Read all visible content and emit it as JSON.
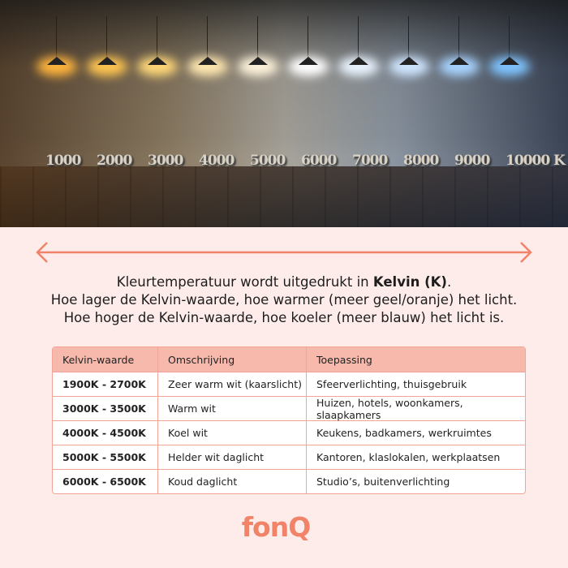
{
  "hero": {
    "lamp_colors": [
      "#ffb43c",
      "#ffc550",
      "#ffd878",
      "#ffe8b0",
      "#fff4dc",
      "#ffffff",
      "#eaf4ff",
      "#cfe6ff",
      "#a8d4ff",
      "#7fc4ff"
    ],
    "kelvin_labels": [
      "1000",
      "2000",
      "3000",
      "4000",
      "5000",
      "6000",
      "7000",
      "8000",
      "9000",
      "10000 K"
    ]
  },
  "intro": {
    "line1_prefix": "Kleurtemperatuur wordt uitgedrukt in ",
    "line1_bold": "Kelvin (K)",
    "line1_suffix": ".",
    "line2": "Hoe lager de Kelvin-waarde, hoe warmer (meer geel/oranje) het licht.",
    "line3": "Hoe hoger de Kelvin-waarde, hoe koeler (meer blauw) het licht is."
  },
  "table": {
    "headers": [
      "Kelvin-waarde",
      "Omschrijving",
      "Toepassing"
    ],
    "rows": [
      [
        "1900K - 2700K",
        "Zeer warm wit (kaarslicht)",
        "Sfeerverlichting, thuisgebruik"
      ],
      [
        "3000K - 3500K",
        "Warm wit",
        "Huizen, hotels, woonkamers, slaapkamers"
      ],
      [
        "4000K - 4500K",
        "Koel wit",
        "Keukens, badkamers, werkruimtes"
      ],
      [
        "5000K - 5500K",
        "Helder wit daglicht",
        "Kantoren, klaslokalen, werkplaatsen"
      ],
      [
        "6000K - 6500K",
        "Koud daglicht",
        "Studio’s, buitenverlichting"
      ]
    ]
  },
  "brand": {
    "logo": "fonQ",
    "accent": "#f08368"
  }
}
